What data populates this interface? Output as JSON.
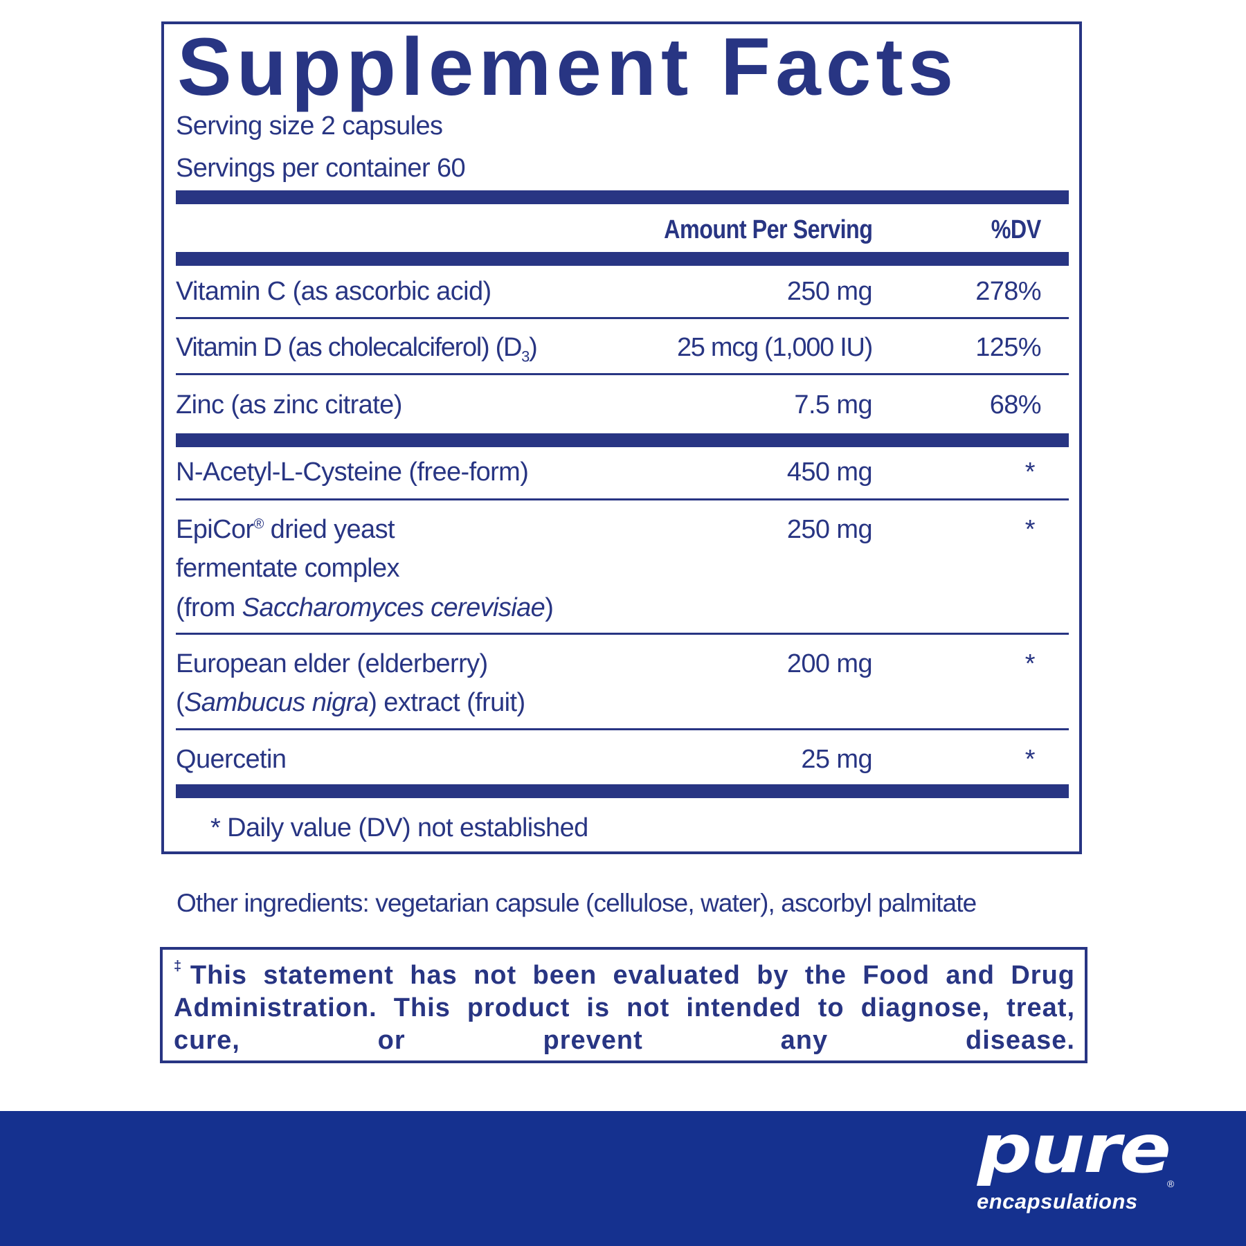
{
  "title": "Supplement Facts",
  "serving_size": "Serving size  2 capsules",
  "servings_per_container": "Servings per container  60",
  "headers": {
    "amount": "Amount Per Serving",
    "dv": "%DV"
  },
  "rows": [
    {
      "name": "Vitamin C (as ascorbic acid)",
      "amount": "250 mg",
      "dv": "278%"
    },
    {
      "name": "Vitamin D (as cholecalciferol) (D",
      "name_sub": "3",
      "name_end": ")",
      "amount": "25 mcg (1,000 IU)",
      "dv": "125%"
    },
    {
      "name": "Zinc (as zinc citrate)",
      "amount": "7.5 mg",
      "dv": "68%"
    },
    {
      "name": "N-Acetyl-L-Cysteine (free-form)",
      "amount": "450 mg",
      "dv": "*"
    },
    {
      "line1": "EpiCor",
      "reg": "®",
      "line1_end": " dried yeast",
      "line2": "fermentate complex",
      "line3_pre": "(from ",
      "line3_italic": "Saccharomyces cerevisiae",
      "line3_end": ")",
      "amount": "250 mg",
      "dv": "*"
    },
    {
      "line1": "European elder (elderberry)",
      "line2_pre": "(",
      "line2_italic": "Sambucus nigra",
      "line2_end": ") extract (fruit)",
      "amount": "200 mg",
      "dv": "*"
    },
    {
      "name": "Quercetin",
      "amount": "25 mg",
      "dv": "*"
    }
  ],
  "footnote": "* Daily value (DV) not established",
  "other_ingredients": "Other ingredients: vegetarian capsule (cellulose, water), ascorbyl palmitate",
  "disclaimer_mark": "‡",
  "disclaimer": "This statement has not been evaluated by the Food and Drug Administration. This product is not intended to diagnose, treat, cure, or prevent any disease.",
  "brand": {
    "line1": "pure",
    "line2": "encapsulations",
    "reg": "®"
  },
  "colors": {
    "text": "#283583",
    "footer": "#15318f"
  }
}
